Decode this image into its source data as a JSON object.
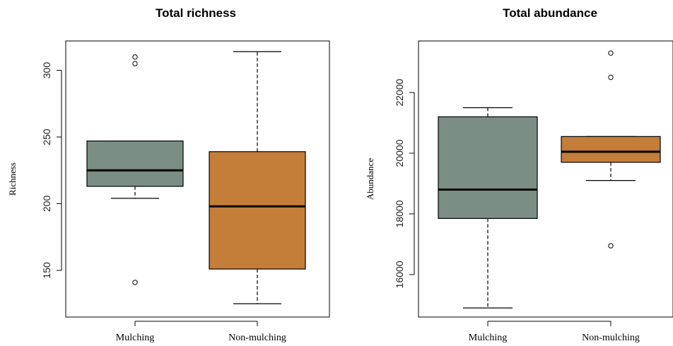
{
  "chart_data": [
    {
      "type": "boxplot",
      "title": "Total richness",
      "xlabel": "",
      "ylabel": "Richness",
      "ylim": [
        115,
        322
      ],
      "yticks": [
        150,
        200,
        250,
        300
      ],
      "categories": [
        "Mulching",
        "Non-mulching"
      ],
      "boxes": [
        {
          "category": "Mulching",
          "whisker_low": 204,
          "q1": 213,
          "median": 225,
          "q3": 247,
          "whisker_high": 247,
          "outliers": [
            141,
            305,
            310
          ],
          "color": "#7a8e85"
        },
        {
          "category": "Non-mulching",
          "whisker_low": 125,
          "q1": 151,
          "median": 198,
          "q3": 239,
          "whisker_high": 314,
          "outliers": [],
          "color": "#c57d3a"
        }
      ]
    },
    {
      "type": "boxplot",
      "title": "Total abundance",
      "xlabel": "",
      "ylabel": "Abundance",
      "ylim": [
        14600,
        23700
      ],
      "yticks": [
        16000,
        18000,
        20000,
        22000
      ],
      "categories": [
        "Mulching",
        "Non-mulching"
      ],
      "boxes": [
        {
          "category": "Mulching",
          "whisker_low": 14900,
          "q1": 17850,
          "median": 18800,
          "q3": 21200,
          "whisker_high": 21500,
          "outliers": [],
          "color": "#7a8e85"
        },
        {
          "category": "Non-mulching",
          "whisker_low": 19100,
          "q1": 19700,
          "median": 20050,
          "q3": 20550,
          "whisker_high": 20550,
          "outliers": [
            16950,
            22500,
            23300
          ],
          "color": "#c57d3a"
        }
      ]
    }
  ]
}
